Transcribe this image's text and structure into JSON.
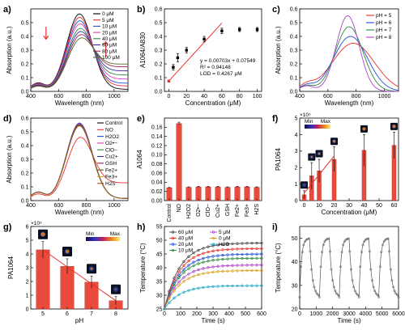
{
  "chart_data": [
    {
      "panel": "a)",
      "type": "line",
      "xlabel": "Wavelength (nm)",
      "ylabel": "Absorption (a.u.)",
      "xlim": [
        400,
        1100
      ],
      "ylim": [
        0,
        0.6
      ],
      "xticks": [
        400,
        600,
        800,
        1000
      ],
      "yticks": [
        0.0,
        0.1,
        0.2,
        0.3,
        0.4,
        0.5
      ],
      "legend_position": "top-right",
      "series": [
        {
          "name": "0 μM",
          "color": "#000000",
          "peak": 0.56,
          "tail": 0.015
        },
        {
          "name": "5 μM",
          "color": "#e8302a",
          "peak": 0.53,
          "tail": 0.04
        },
        {
          "name": "10 μM",
          "color": "#1f4fd8",
          "peak": 0.5,
          "tail": 0.06
        },
        {
          "name": "20 μM",
          "color": "#e040b0",
          "peak": 0.47,
          "tail": 0.09
        },
        {
          "name": "40 μM",
          "color": "#2c8a3c",
          "peak": 0.43,
          "tail": 0.12
        },
        {
          "name": "60 μM",
          "color": "#3a2aa0",
          "peak": 0.4,
          "tail": 0.15
        },
        {
          "name": "80 μM",
          "color": "#a01e56",
          "peak": 0.37,
          "tail": 0.18
        },
        {
          "name": "100 μM",
          "color": "#4a6b20",
          "peak": 0.34,
          "tail": 0.2
        }
      ]
    },
    {
      "panel": "b)",
      "type": "scatter",
      "xlabel": "Concentration (μM)",
      "ylabel": "A1064/A830",
      "xlim": [
        -5,
        105
      ],
      "ylim": [
        0.0,
        0.6
      ],
      "xticks": [
        0,
        20,
        40,
        60,
        80,
        100
      ],
      "yticks": [
        0.0,
        0.1,
        0.2,
        0.3,
        0.4,
        0.5,
        0.6
      ],
      "x": [
        0,
        5,
        10,
        20,
        40,
        60,
        80,
        100
      ],
      "values": [
        0.075,
        0.175,
        0.245,
        0.3,
        0.38,
        0.44,
        0.45,
        0.45
      ],
      "errors": [
        0.005,
        0.02,
        0.03,
        0.02,
        0.02,
        0.02,
        0.015,
        0.015
      ],
      "fit": {
        "slope": 0.00703,
        "intercept": 0.07549,
        "x_range": [
          0,
          60
        ]
      },
      "annotations": [
        "y = 0.00703x + 0.07549",
        "R² = 0.94148",
        "LOD = 0.4267 μM"
      ]
    },
    {
      "panel": "c)",
      "type": "line",
      "xlabel": "Wavelength (nm)",
      "ylabel": "Absorption (a.u.)",
      "xlim": [
        400,
        1100
      ],
      "ylim": [
        0,
        0.6
      ],
      "xticks": [
        400,
        600,
        800,
        1000
      ],
      "yticks": [
        0.0,
        0.1,
        0.2,
        0.3,
        0.4,
        0.5,
        0.6
      ],
      "legend_position": "top-right",
      "series": [
        {
          "name": "pH = 5",
          "color": "#e8302a",
          "peak": 0.35,
          "center": 780,
          "width": 210
        },
        {
          "name": "pH = 6",
          "color": "#1f4fd8",
          "peak": 0.4,
          "center": 760,
          "width": 170
        },
        {
          "name": "pH = 7",
          "color": "#2c8a3c",
          "peak": 0.47,
          "center": 750,
          "width": 140
        },
        {
          "name": "pH = 8",
          "color": "#b040c8",
          "peak": 0.55,
          "center": 740,
          "width": 115
        }
      ]
    },
    {
      "panel": "d)",
      "type": "line",
      "xlabel": "Wavelength (nm)",
      "ylabel": "Absorption (a.u.)",
      "xlim": [
        400,
        1100
      ],
      "ylim": [
        0,
        0.6
      ],
      "xticks": [
        400,
        600,
        800,
        1000
      ],
      "yticks": [
        0.0,
        0.1,
        0.2,
        0.3,
        0.4,
        0.5,
        0.6
      ],
      "legend_position": "top-right",
      "series": [
        {
          "name": "Control",
          "color": "#000000",
          "peak": 0.56,
          "tail": 0.015
        },
        {
          "name": "NO",
          "color": "#e8302a",
          "peak": 0.43,
          "tail": 0.13
        },
        {
          "name": "H2O2",
          "color": "#1f4fd8",
          "peak": 0.56,
          "tail": 0.015
        },
        {
          "name": "O2•−",
          "color": "#e040b0",
          "peak": 0.555,
          "tail": 0.015
        },
        {
          "name": "ClO−",
          "color": "#2c8a3c",
          "peak": 0.55,
          "tail": 0.015
        },
        {
          "name": "Cu2+",
          "color": "#3a2aa0",
          "peak": 0.545,
          "tail": 0.015
        },
        {
          "name": "GSH",
          "color": "#a01e56",
          "peak": 0.55,
          "tail": 0.015
        },
        {
          "name": "Fe2+",
          "color": "#4a6b20",
          "peak": 0.545,
          "tail": 0.015
        },
        {
          "name": "Fe3+",
          "color": "#d8a020",
          "peak": 0.54,
          "tail": 0.015
        },
        {
          "name": "H2S",
          "color": "#8a5a20",
          "peak": 0.54,
          "tail": 0.015
        }
      ]
    },
    {
      "panel": "e)",
      "type": "bar",
      "xlabel": "",
      "ylabel": "A1064",
      "ylim": [
        0,
        0.18
      ],
      "yticks": [
        0.0,
        0.02,
        0.04,
        0.06,
        0.08,
        0.1,
        0.12,
        0.14,
        0.16
      ],
      "categories": [
        "Control",
        "NO",
        "H2O2",
        "O2•−",
        "ClO−",
        "Cu2+",
        "GSH",
        "Fe2+",
        "Fe3+",
        "H2S"
      ],
      "values": [
        0.028,
        0.168,
        0.029,
        0.03,
        0.03,
        0.03,
        0.029,
        0.03,
        0.03,
        0.029
      ],
      "errors": [
        0.001,
        0.003,
        0.001,
        0.001,
        0.001,
        0.001,
        0.001,
        0.001,
        0.001,
        0.001
      ]
    },
    {
      "panel": "f)",
      "type": "bar",
      "xlabel": "Concentration (μM)",
      "ylabel": "PA1064",
      "y_multiplier": "×10⁵",
      "ylim": [
        0,
        5
      ],
      "yticks": [
        0,
        1,
        2,
        3,
        4,
        5
      ],
      "xlim": [
        -3,
        63
      ],
      "xticks": [
        0,
        10,
        20,
        30,
        40,
        50,
        60
      ],
      "x": [
        0,
        5,
        10,
        20,
        40,
        60
      ],
      "values": [
        0.35,
        1.5,
        1.8,
        2.5,
        3.05,
        3.35
      ],
      "errors": [
        0.25,
        0.8,
        0.7,
        0.75,
        0.95,
        0.8
      ],
      "fit": {
        "x_range": [
          0,
          20
        ],
        "y": [
          0.45,
          2.7
        ]
      },
      "colorbar": {
        "min_label": "Min",
        "max_label": "Max"
      }
    },
    {
      "panel": "g)",
      "type": "bar",
      "xlabel": "pH",
      "ylabel": "PA1064",
      "y_multiplier": "×10⁵",
      "ylim": [
        0,
        6
      ],
      "yticks": [
        0,
        1,
        2,
        3,
        4,
        5,
        6
      ],
      "categories": [
        "5",
        "6",
        "7",
        "8"
      ],
      "values": [
        4.3,
        3.1,
        1.95,
        0.6
      ],
      "errors": [
        0.6,
        0.55,
        0.45,
        0.3
      ],
      "fit": {
        "y": [
          4.3,
          0.6
        ]
      },
      "colorbar": {
        "min_label": "Min",
        "max_label": "Max"
      }
    },
    {
      "panel": "h)",
      "type": "line",
      "xlabel": "Time (s)",
      "ylabel": "Temperature (°C)",
      "xlim": [
        0,
        600
      ],
      "ylim": [
        25,
        55
      ],
      "xticks": [
        0,
        100,
        200,
        300,
        400,
        500,
        600
      ],
      "yticks": [
        25,
        30,
        35,
        40,
        45,
        50,
        55
      ],
      "legend_position": "top",
      "series": [
        {
          "name": "60 μM",
          "color": "#444444",
          "plateau": 49
        },
        {
          "name": "40 μM",
          "color": "#e8302a",
          "plateau": 47
        },
        {
          "name": "20 μM",
          "color": "#1f4fd8",
          "plateau": 45
        },
        {
          "name": "10 μM",
          "color": "#2c8a3c",
          "plateau": 43.5
        },
        {
          "name": "5 μM",
          "color": "#b040c8",
          "plateau": 41
        },
        {
          "name": "0 μM",
          "color": "#d8a020",
          "plateau": 39
        },
        {
          "name": "H2O",
          "color": "#20a8c8",
          "plateau": 33.5
        }
      ]
    },
    {
      "panel": "i)",
      "type": "line",
      "xlabel": "Time (s)",
      "ylabel": "Temperature (°C)",
      "xlim": [
        0,
        6000
      ],
      "ylim": [
        20,
        55
      ],
      "xticks": [
        0,
        1000,
        2000,
        3000,
        4000,
        5000,
        6000
      ],
      "yticks": [
        20,
        30,
        40,
        50
      ],
      "cycles": 5,
      "t_min": 25,
      "t_max": 50
    }
  ]
}
